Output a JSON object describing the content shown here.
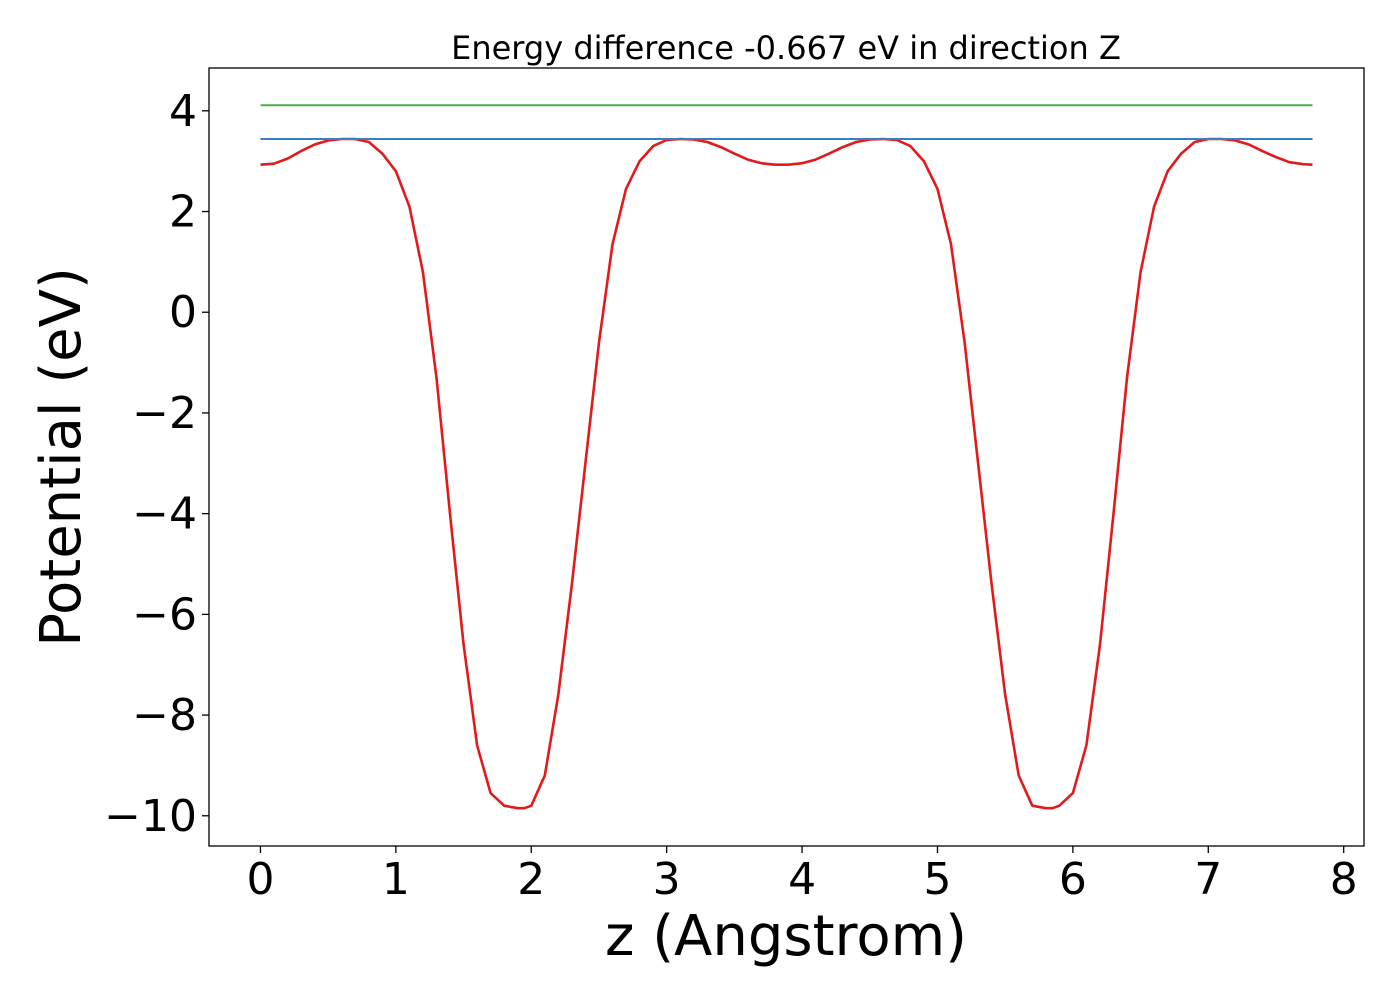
{
  "chart_data": {
    "type": "line",
    "title": "Energy difference -0.667 eV in direction Z",
    "xlabel": "z (Angstrom)",
    "ylabel": "Potential (eV)",
    "xlim": [
      -0.38,
      8.15
    ],
    "ylim": [
      -10.6,
      4.85
    ],
    "xticks": [
      0,
      1,
      2,
      3,
      4,
      5,
      6,
      7,
      8
    ],
    "yticks": [
      4,
      2,
      0,
      -2,
      -4,
      -6,
      -8,
      -10
    ],
    "xtick_labels": [
      "0",
      "1",
      "2",
      "3",
      "4",
      "5",
      "6",
      "7",
      "8"
    ],
    "ytick_labels": [
      "4",
      "2",
      "0",
      "−2",
      "−4",
      "−6",
      "−8",
      "−10"
    ],
    "grid": false,
    "series": [
      {
        "color": "#e31a1c",
        "x": [
          0.0,
          0.1,
          0.2,
          0.3,
          0.4,
          0.5,
          0.6,
          0.7,
          0.8,
          0.9,
          1.0,
          1.1,
          1.2,
          1.3,
          1.4,
          1.5,
          1.6,
          1.7,
          1.8,
          1.9,
          1.95,
          2.0,
          2.1,
          2.2,
          2.3,
          2.4,
          2.5,
          2.6,
          2.7,
          2.8,
          2.9,
          3.0,
          3.1,
          3.2,
          3.3,
          3.4,
          3.5,
          3.6,
          3.7,
          3.8,
          3.9,
          4.0,
          4.1,
          4.2,
          4.3,
          4.4,
          4.5,
          4.6,
          4.7,
          4.8,
          4.9,
          5.0,
          5.1,
          5.2,
          5.3,
          5.4,
          5.5,
          5.6,
          5.7,
          5.8,
          5.85,
          5.9,
          6.0,
          6.1,
          6.2,
          6.3,
          6.4,
          6.5,
          6.6,
          6.7,
          6.8,
          6.9,
          7.0,
          7.1,
          7.2,
          7.3,
          7.4,
          7.5,
          7.6,
          7.7,
          7.77
        ],
        "y": [
          2.93,
          2.95,
          3.05,
          3.2,
          3.33,
          3.41,
          3.44,
          3.44,
          3.38,
          3.15,
          2.8,
          2.1,
          0.8,
          -1.3,
          -4.0,
          -6.6,
          -8.6,
          -9.55,
          -9.8,
          -9.85,
          -9.85,
          -9.8,
          -9.2,
          -7.6,
          -5.4,
          -3.0,
          -0.6,
          1.35,
          2.45,
          3.0,
          3.3,
          3.42,
          3.44,
          3.43,
          3.38,
          3.28,
          3.15,
          3.03,
          2.96,
          2.93,
          2.93,
          2.96,
          3.03,
          3.15,
          3.28,
          3.38,
          3.43,
          3.44,
          3.42,
          3.3,
          3.0,
          2.45,
          1.35,
          -0.6,
          -3.0,
          -5.4,
          -7.6,
          -9.2,
          -9.8,
          -9.85,
          -9.85,
          -9.8,
          -9.55,
          -8.6,
          -6.6,
          -4.0,
          -1.3,
          0.8,
          2.1,
          2.8,
          3.15,
          3.38,
          3.44,
          3.44,
          3.41,
          3.33,
          3.2,
          3.08,
          2.98,
          2.94,
          2.93
        ]
      },
      {
        "color": "#3a7ebf",
        "x": [
          0.0,
          7.77
        ],
        "y": [
          3.44,
          3.44
        ]
      },
      {
        "color": "#4daf4a",
        "x": [
          0.0,
          7.77
        ],
        "y": [
          4.11,
          4.11
        ]
      }
    ]
  }
}
